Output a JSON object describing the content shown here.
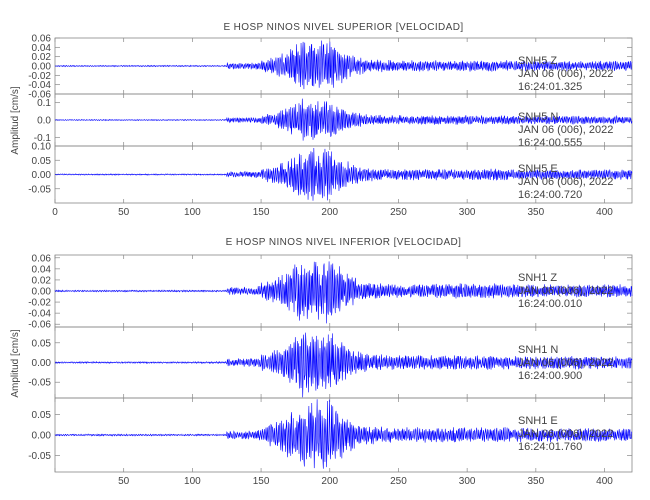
{
  "chart_data": {
    "type": "line",
    "trace_color": "#0000ff",
    "x_ticks": [
      0,
      50,
      100,
      150,
      200,
      250,
      300,
      350,
      400
    ],
    "xlim": [
      0,
      420
    ],
    "panels": [
      {
        "title": "E HOSP NINOS NIVEL SUPERIOR [VELOCIDAD]",
        "ylabel": "Amplitud [cm/s]",
        "show_x0_label": true,
        "traces": [
          {
            "station": "SNH5",
            "component": "Z",
            "date": "JAN 06 (006), 2022",
            "time": "16:24:01.325",
            "ylim": [
              -0.06,
              0.06
            ],
            "y_ticks": [
              0.06,
              0.04,
              0.02,
              0.0,
              -0.02,
              -0.04,
              -0.06
            ],
            "y_tick_labels": [
              "0.06",
              "0.04",
              "0.02",
              "0.00",
              "-0.02",
              "-0.04",
              "-0.06"
            ],
            "peak": 0.055,
            "seed": 11
          },
          {
            "station": "SNH5",
            "component": "N",
            "date": "JAN 06 (006), 2022",
            "time": "16:24:00.555",
            "ylim": [
              -0.15,
              0.15
            ],
            "y_ticks": [
              0.1,
              0.0,
              -0.1
            ],
            "y_tick_labels": [
              "0.1",
              "0.0",
              "-0.1"
            ],
            "peak": 0.12,
            "seed": 23
          },
          {
            "station": "SNH5",
            "component": "E",
            "date": "JAN 06 (006), 2022",
            "time": "16:24:00.720",
            "ylim": [
              -0.1,
              0.1
            ],
            "y_ticks": [
              0.1,
              0.05,
              0.0,
              -0.05
            ],
            "y_tick_labels": [
              "0.10",
              "0.05",
              "0.00",
              "-0.05"
            ],
            "peak": 0.09,
            "seed": 37
          }
        ]
      },
      {
        "title": "E HOSP NINOS NIVEL INFERIOR [VELOCIDAD]",
        "ylabel": "Amplitud [cm/s]",
        "show_x0_label": false,
        "traces": [
          {
            "station": "SNH1",
            "component": "Z",
            "date": "JAN 06 (006), 2022",
            "time": "16:24:00.010",
            "ylim": [
              -0.065,
              0.065
            ],
            "y_ticks": [
              0.06,
              0.04,
              0.02,
              0.0,
              -0.02,
              -0.04,
              -0.06
            ],
            "y_tick_labels": [
              "0.06",
              "0.04",
              "0.02",
              "0.00",
              "-0.02",
              "-0.04",
              "-0.06"
            ],
            "peak": 0.06,
            "seed": 41
          },
          {
            "station": "SNH1",
            "component": "N",
            "date": "JAN 06 (006), 2022",
            "time": "16:24:00.900",
            "ylim": [
              -0.09,
              0.09
            ],
            "y_ticks": [
              0.05,
              0.0,
              -0.05
            ],
            "y_tick_labels": [
              "0.05",
              "0.00",
              "-0.05"
            ],
            "peak": 0.085,
            "seed": 53
          },
          {
            "station": "SNH1",
            "component": "E",
            "date": "JAN 06 (006), 2022",
            "time": "16:24:01.760",
            "ylim": [
              -0.09,
              0.09
            ],
            "y_ticks": [
              0.05,
              0.0,
              -0.05
            ],
            "y_tick_labels": [
              "0.05",
              "0.00",
              "-0.05"
            ],
            "peak": 0.085,
            "seed": 67
          }
        ]
      }
    ]
  }
}
